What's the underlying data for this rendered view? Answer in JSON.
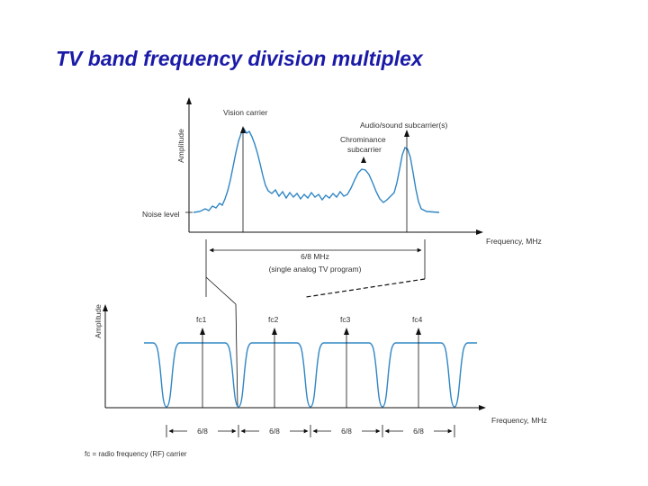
{
  "title": "TV band frequency division multiplex",
  "top_diagram": {
    "y_axis_label": "Amplitude",
    "x_axis_label": "Frequency, MHz",
    "vision_carrier_label": "Vision carrier",
    "audio_subcarrier_label": "Audio/sound subcarrier(s)",
    "chrominance_label_line1": "Chrominance",
    "chrominance_label_line2": "subcarrier",
    "noise_level_label": "Noise level",
    "bandwidth_label": "6/8 MHz",
    "bandwidth_note": "(single analog TV program)"
  },
  "bottom_diagram": {
    "y_axis_label": "Amplitude",
    "x_axis_label": "Frequency, MHz",
    "carrier_labels": [
      "fc1",
      "fc2",
      "fc3",
      "fc4"
    ],
    "spacing_labels": [
      "6/8",
      "6/8",
      "6/8",
      "6/8"
    ],
    "footnote": "fc = radio frequency (RF) carrier"
  },
  "colors": {
    "title": "#1a1aa8",
    "curve": "#2f86c4",
    "lines": "#111111"
  }
}
